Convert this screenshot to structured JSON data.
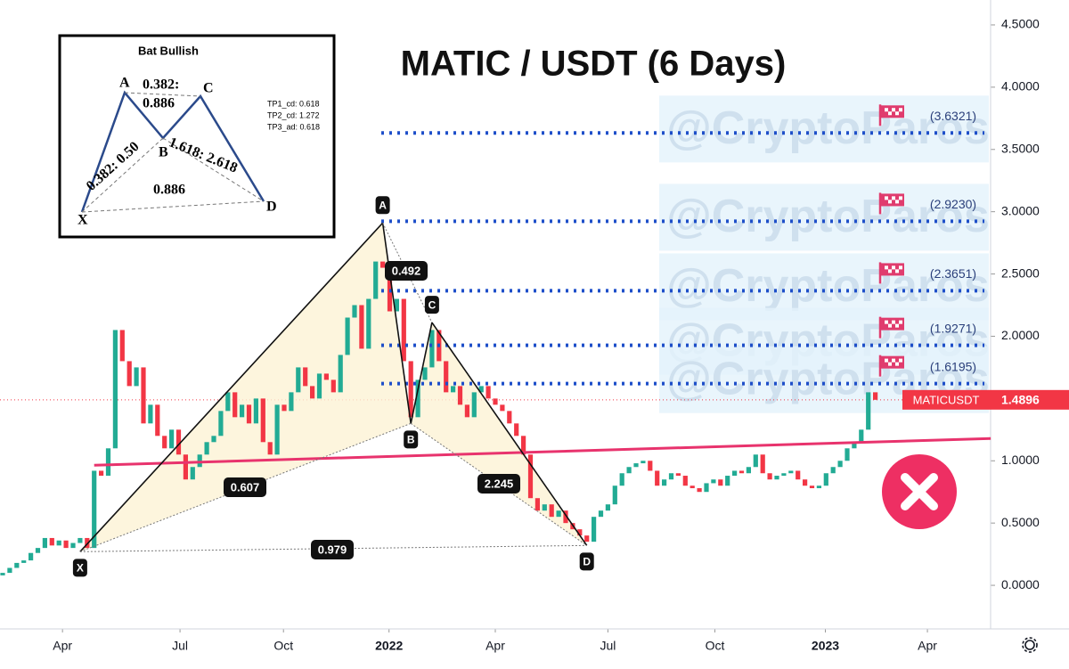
{
  "chart_data": {
    "type": "candlestick",
    "title": "MATIC / USDT (6 Days)",
    "watermark": "@CryptoParos",
    "symbol": "MATICUSDT",
    "last_price": {
      "value": 1.4896,
      "label": "1.4896"
    },
    "up_color": "#22ab94",
    "down_color": "#f23645",
    "open": [
      0.08,
      0.1,
      0.14,
      0.18,
      0.2,
      0.26,
      0.3,
      0.38,
      0.32,
      0.36,
      0.3,
      0.34,
      0.38,
      0.3,
      0.92,
      0.88,
      1.1,
      2.05,
      1.8,
      1.6,
      1.75,
      1.3,
      1.45,
      1.2,
      1.1,
      1.25,
      1.05,
      0.85,
      0.95,
      1.05,
      1.15,
      1.2,
      1.4,
      1.55,
      1.35,
      1.45,
      1.3,
      1.5,
      1.15,
      1.05,
      1.45,
      1.4,
      1.55,
      1.75,
      1.6,
      1.5,
      1.7,
      1.65,
      1.55,
      1.85,
      2.15,
      2.25,
      1.9,
      2.3,
      2.6,
      2.55,
      2.2,
      2.3,
      1.8,
      1.35,
      1.65,
      1.75,
      2.05,
      1.8,
      1.55,
      1.6,
      1.45,
      1.35,
      1.55,
      1.6,
      1.5,
      1.45,
      1.4,
      1.3,
      1.2,
      1.05,
      0.7,
      0.6,
      0.65,
      0.55,
      0.6,
      0.5,
      0.45,
      0.4,
      0.35,
      0.55,
      0.6,
      0.65,
      0.8,
      0.9,
      0.95,
      0.98,
      1.0,
      0.92,
      0.8,
      0.85,
      0.9,
      0.88,
      0.8,
      0.78,
      0.75,
      0.82,
      0.85,
      0.8,
      0.88,
      0.92,
      0.9,
      0.95,
      1.05,
      0.9,
      0.85,
      0.88,
      0.9,
      0.92,
      0.85,
      0.8,
      0.78,
      0.8,
      0.9,
      0.95,
      1.0,
      1.1,
      1.15,
      1.25,
      1.55
    ],
    "close": [
      0.1,
      0.14,
      0.18,
      0.2,
      0.26,
      0.3,
      0.38,
      0.32,
      0.36,
      0.3,
      0.34,
      0.38,
      0.3,
      0.92,
      0.88,
      1.1,
      2.05,
      1.8,
      1.6,
      1.75,
      1.3,
      1.45,
      1.2,
      1.1,
      1.25,
      1.05,
      0.85,
      0.95,
      1.05,
      1.15,
      1.2,
      1.4,
      1.55,
      1.35,
      1.45,
      1.3,
      1.5,
      1.15,
      1.05,
      1.45,
      1.4,
      1.55,
      1.75,
      1.6,
      1.5,
      1.7,
      1.65,
      1.55,
      1.85,
      2.15,
      2.25,
      1.9,
      2.3,
      2.6,
      2.55,
      2.2,
      2.3,
      1.8,
      1.35,
      1.65,
      1.75,
      2.05,
      1.8,
      1.55,
      1.6,
      1.45,
      1.35,
      1.55,
      1.6,
      1.5,
      1.45,
      1.4,
      1.3,
      1.2,
      1.05,
      0.7,
      0.6,
      0.65,
      0.55,
      0.6,
      0.5,
      0.45,
      0.4,
      0.35,
      0.55,
      0.6,
      0.65,
      0.8,
      0.9,
      0.95,
      0.98,
      1.0,
      0.92,
      0.8,
      0.85,
      0.9,
      0.88,
      0.8,
      0.78,
      0.75,
      0.82,
      0.85,
      0.8,
      0.88,
      0.92,
      0.9,
      0.95,
      1.05,
      0.9,
      0.85,
      0.88,
      0.9,
      0.92,
      0.85,
      0.8,
      0.78,
      0.8,
      0.9,
      0.95,
      1.0,
      1.1,
      1.15,
      1.25,
      1.55,
      1.4896
    ],
    "ylim": [
      -0.35,
      4.7
    ],
    "yticks": [
      {
        "value": 0,
        "label": "0.0000"
      },
      {
        "value": 0.5,
        "label": "0.5000"
      },
      {
        "value": 1,
        "label": "1.0000"
      },
      {
        "value": 1.5,
        "label": "1.5000"
      },
      {
        "value": 2,
        "label": "2.0000"
      },
      {
        "value": 2.5,
        "label": "2.5000"
      },
      {
        "value": 3,
        "label": "3.0000"
      },
      {
        "value": 3.5,
        "label": "3.5000"
      },
      {
        "value": 4,
        "label": "4.0000"
      },
      {
        "value": 4.5,
        "label": "4.5000"
      }
    ],
    "xticks": [
      {
        "value": 8.5,
        "label": "Apr"
      },
      {
        "value": 25.2,
        "label": "Jul"
      },
      {
        "value": 39.9,
        "label": "Oct"
      },
      {
        "value": 54.9,
        "label": "2022"
      },
      {
        "value": 70,
        "label": "Apr"
      },
      {
        "value": 86,
        "label": "Jul"
      },
      {
        "value": 101.2,
        "label": "Oct"
      },
      {
        "value": 116.9,
        "label": "2023"
      },
      {
        "value": 131.4,
        "label": "Apr"
      }
    ],
    "pattern": {
      "points": [
        {
          "label": "X",
          "index": 11,
          "price": 0.27
        },
        {
          "label": "A",
          "index": 54,
          "price": 2.91
        },
        {
          "label": "B",
          "index": 58,
          "price": 1.3
        },
        {
          "label": "C",
          "index": 61,
          "price": 2.11
        },
        {
          "label": "D",
          "index": 83,
          "price": 0.32
        }
      ],
      "ratios": [
        "0.607",
        "0.492",
        "2.245",
        "0.979"
      ]
    },
    "targets": {
      "values": [
        3.6321,
        2.923,
        2.3651,
        1.9271,
        1.6195
      ],
      "value_labels": [
        "(3.6321)",
        "(2.9230)",
        "(2.3651)",
        "(1.9271)",
        "(1.6195)"
      ],
      "color": "#1e4fc9"
    },
    "trendline": {
      "start": {
        "index": 13,
        "price": 0.964
      },
      "end": {
        "index": 140.4,
        "price": 1.179
      },
      "color": "#e8336d"
    },
    "inset": {
      "title": "Bat Bullish",
      "points": [
        "X",
        "A",
        "B",
        "C",
        "D"
      ],
      "ratios": [
        "0.382:",
        "0.886",
        "1.618: 2.618",
        "0.382: 0.50",
        "0.886"
      ],
      "targets": [
        "TP1_cd: 0.618",
        "TP2_cd: 1.272",
        "TP3_ad: 0.618"
      ]
    }
  }
}
